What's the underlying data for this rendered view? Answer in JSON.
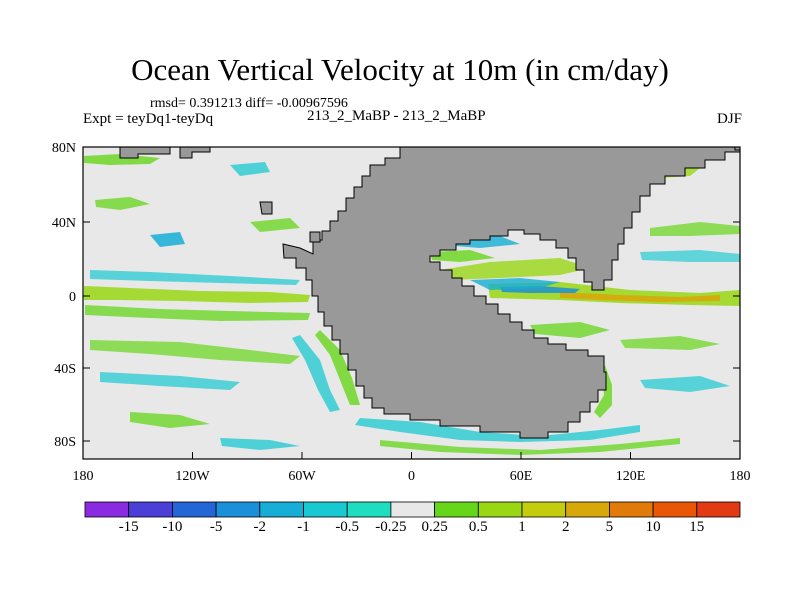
{
  "title": "Ocean Vertical Velocity at 10m (in cm/day)",
  "stats": "rmsd= 0.391213  diff= -0.00967596",
  "expt_label": "Expt = teyDq1-teyDq",
  "run_label": "213_2_MaBP - 213_2_MaBP",
  "season": "DJF",
  "map": {
    "lon_ticks": [
      "180",
      "120W",
      "60W",
      "0",
      "60E",
      "120E",
      "180"
    ],
    "lat_ticks": [
      "80N",
      "40N",
      "0",
      "40S",
      "80S"
    ],
    "land_color": "#999999",
    "ocean_color": "#e8e8e8"
  },
  "colorbar": {
    "colors": [
      "#8a2be2",
      "#4b3fd8",
      "#2466d6",
      "#1a90d8",
      "#16aed6",
      "#19c9d2",
      "#1fddc0",
      "#e8e8e8",
      "#66d61a",
      "#99d614",
      "#c4cc0e",
      "#d6a80a",
      "#e07a08",
      "#e85606",
      "#e23a12"
    ],
    "labels": [
      "-15",
      "-10",
      "-5",
      "-2",
      "-1",
      "-0.5",
      "-0.25",
      "0.25",
      "0.5",
      "1",
      "2",
      "5",
      "10",
      "15"
    ]
  }
}
